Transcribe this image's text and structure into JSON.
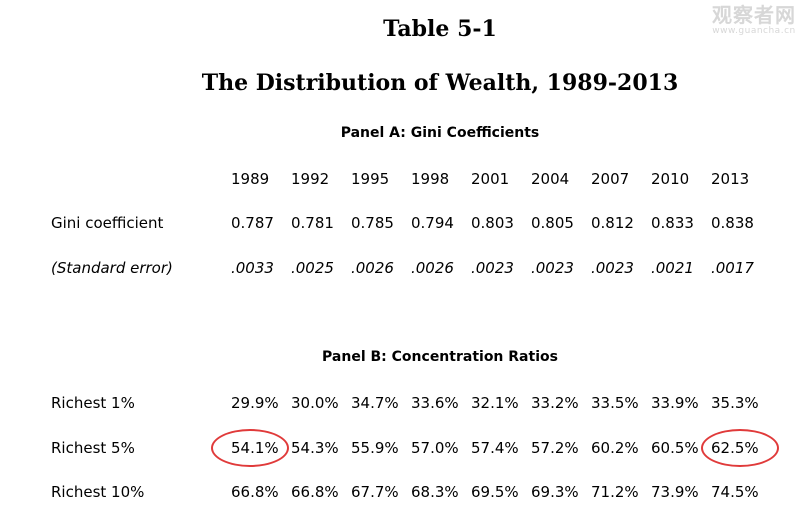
{
  "watermark": {
    "main": "观察者网",
    "sub": "www.guancha.cn"
  },
  "title": "Table 5-1",
  "subtitle": "The Distribution of Wealth, 1989-2013",
  "panel_a": {
    "title": "Panel A:  Gini Coefficients",
    "years": [
      "1989",
      "1992",
      "1995",
      "1998",
      "2001",
      "2004",
      "2007",
      "2010",
      "2013"
    ],
    "rows": [
      {
        "label": "Gini coefficient",
        "values": [
          "0.787",
          "0.781",
          "0.785",
          "0.794",
          "0.803",
          "0.805",
          "0.812",
          "0.833",
          "0.838"
        ]
      },
      {
        "label": "(Standard error)",
        "values": [
          ".0033",
          ".0025",
          ".0026",
          ".0026",
          ".0023",
          ".0023",
          ".0023",
          ".0021",
          ".0017"
        ]
      }
    ]
  },
  "panel_b": {
    "title": "Panel B:  Concentration Ratios",
    "rows": [
      {
        "label": "Richest 1%",
        "values": [
          "29.9%",
          "30.0%",
          "34.7%",
          "33.6%",
          "32.1%",
          "33.2%",
          "33.5%",
          "33.9%",
          "35.3%"
        ]
      },
      {
        "label": "Richest 5%",
        "values": [
          "54.1%",
          "54.3%",
          "55.9%",
          "57.0%",
          "57.4%",
          "57.2%",
          "60.2%",
          "60.5%",
          "62.5%"
        ]
      },
      {
        "label": "Richest 10%",
        "values": [
          "66.8%",
          "66.8%",
          "67.7%",
          "68.3%",
          "69.5%",
          "69.3%",
          "71.2%",
          "73.9%",
          "74.5%"
        ]
      }
    ]
  },
  "highlight_color": "#e03a3a"
}
